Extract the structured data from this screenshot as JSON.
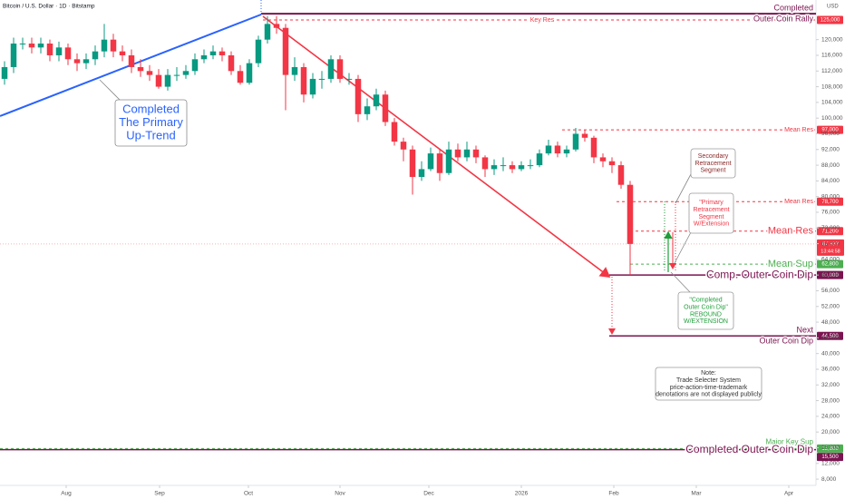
{
  "chart_data": {
    "type": "candlestick",
    "title": "Bitcoin / U.S. Dollar · 1D · Bitstamp",
    "currency": "USD",
    "categories": [
      null,
      null,
      null,
      null,
      null,
      null,
      null,
      null,
      null,
      null,
      null,
      null,
      null,
      null,
      null,
      null,
      null,
      null,
      null,
      null,
      null,
      null,
      null,
      null,
      null,
      null,
      null,
      null,
      null,
      null,
      null,
      null,
      null,
      null,
      null,
      null,
      null,
      null,
      null,
      null,
      null,
      null,
      null,
      null,
      null,
      null,
      null,
      null,
      null,
      null,
      null,
      null,
      null,
      null,
      null,
      null,
      null,
      null,
      null,
      null,
      null,
      null,
      null,
      null,
      null,
      null,
      null,
      null,
      null,
      null
    ],
    "open": [
      110000,
      113000,
      119000,
      119000,
      118000,
      119000,
      116000,
      118000,
      115000,
      114000,
      115000,
      117000,
      120000,
      117000,
      116000,
      113000,
      112000,
      111000,
      108000,
      111000,
      111000,
      112000,
      115000,
      116000,
      117000,
      116000,
      112000,
      109000,
      114000,
      120000,
      124000,
      123000,
      111000,
      113000,
      106000,
      110000,
      110000,
      115000,
      110000,
      110000,
      101000,
      103000,
      106000,
      99000,
      94000,
      92000,
      85000,
      87000,
      91000,
      86000,
      92000,
      90000,
      92000,
      90000,
      87000,
      88000,
      88000,
      87000,
      88000,
      88000,
      91000,
      93000,
      91000,
      92000,
      96000,
      95000,
      90000,
      89000,
      88000,
      83000
    ],
    "high": [
      114500,
      120500,
      120500,
      120500,
      120500,
      120000,
      119500,
      119000,
      116500,
      116500,
      118500,
      124000,
      121500,
      118500,
      117500,
      115000,
      113500,
      112500,
      112500,
      113000,
      113500,
      116500,
      117500,
      118500,
      118000,
      117000,
      113500,
      115000,
      121000,
      126000,
      126000,
      124000,
      115500,
      114000,
      111500,
      112000,
      116000,
      116000,
      111500,
      111000,
      105000,
      107500,
      107000,
      100000,
      95000,
      93000,
      89000,
      92500,
      92000,
      94000,
      93500,
      94000,
      93000,
      90500,
      89500,
      90000,
      89000,
      89000,
      89500,
      92000,
      94500,
      94000,
      93000,
      97500,
      97000,
      95500,
      91000,
      90000,
      89000,
      84000
    ],
    "low": [
      108500,
      111500,
      117500,
      116500,
      116500,
      114500,
      114500,
      113500,
      112000,
      112500,
      113500,
      115500,
      115500,
      114500,
      111500,
      110500,
      109500,
      107500,
      107000,
      109500,
      110000,
      111000,
      114000,
      115000,
      114500,
      111000,
      108500,
      108500,
      113000,
      119000,
      121500,
      102000,
      109500,
      104000,
      105000,
      107500,
      109000,
      109000,
      108500,
      99000,
      99500,
      102000,
      98000,
      93000,
      89000,
      80500,
      84000,
      86500,
      84000,
      85500,
      89000,
      89000,
      88500,
      85000,
      85500,
      86500,
      86000,
      86500,
      87000,
      87500,
      90500,
      90000,
      90000,
      91500,
      94000,
      88500,
      87500,
      86000,
      82000,
      60000
    ],
    "close": [
      113000,
      119000,
      119000,
      118000,
      119000,
      116000,
      118000,
      115000,
      114000,
      115000,
      117000,
      120000,
      117000,
      116000,
      113000,
      112000,
      111000,
      108000,
      111000,
      111000,
      112000,
      115000,
      116000,
      117000,
      116000,
      112000,
      109000,
      114000,
      120000,
      124000,
      123000,
      111000,
      113000,
      106000,
      110000,
      110000,
      115000,
      110000,
      110000,
      101000,
      103000,
      106000,
      99000,
      94000,
      92000,
      85000,
      87000,
      91000,
      86000,
      92000,
      90000,
      92000,
      90000,
      87000,
      88000,
      88000,
      87000,
      88000,
      88000,
      91000,
      93000,
      91000,
      92000,
      96000,
      95000,
      90000,
      89000,
      88000,
      83000,
      67937
    ],
    "up_color": "#089981",
    "down_color": "#f23645",
    "xlim": [
      -0.5,
      89.5
    ],
    "xticks": [
      {
        "value": 6.8,
        "label": "Aug"
      },
      {
        "value": 17.1,
        "label": "Sep"
      },
      {
        "value": 26.9,
        "label": "Oct"
      },
      {
        "value": 37.0,
        "label": "Nov"
      },
      {
        "value": 46.8,
        "label": "Dec"
      },
      {
        "value": 57.0,
        "label": "2026"
      },
      {
        "value": 67.2,
        "label": "Feb"
      },
      {
        "value": 76.3,
        "label": "Mar"
      },
      {
        "value": 86.5,
        "label": "Apr"
      }
    ],
    "ylim": [
      6400,
      130100
    ],
    "yticks": [
      {
        "value": 8000,
        "label": "8,000"
      },
      {
        "value": 12000,
        "label": "12,000"
      },
      {
        "value": 16000,
        "label": "16,000"
      },
      {
        "value": 20000,
        "label": "20,000"
      },
      {
        "value": 24000,
        "label": "24,000"
      },
      {
        "value": 28000,
        "label": "28,000"
      },
      {
        "value": 32000,
        "label": "32,000"
      },
      {
        "value": 36000,
        "label": "36,000"
      },
      {
        "value": 40000,
        "label": "40,000"
      },
      {
        "value": 44000,
        "label": "44,000"
      },
      {
        "value": 48000,
        "label": "48,000"
      },
      {
        "value": 52000,
        "label": "52,000"
      },
      {
        "value": 56000,
        "label": "56,000"
      },
      {
        "value": 60000,
        "label": "60,000"
      },
      {
        "value": 64000,
        "label": "64,000"
      },
      {
        "value": 68000,
        "label": "68,000"
      },
      {
        "value": 72000,
        "label": "72,000"
      },
      {
        "value": 76000,
        "label": "76,000"
      },
      {
        "value": 80000,
        "label": "80,000"
      },
      {
        "value": 84000,
        "label": "84,000"
      },
      {
        "value": 88000,
        "label": "88,000"
      },
      {
        "value": 92000,
        "label": "92,000"
      },
      {
        "value": 96000,
        "label": "96,000"
      },
      {
        "value": 100000,
        "label": "100,000"
      },
      {
        "value": 104000,
        "label": "104,000"
      },
      {
        "value": 108000,
        "label": "108,000"
      },
      {
        "value": 112000,
        "label": "112,000"
      },
      {
        "value": 116000,
        "label": "116,000"
      },
      {
        "value": 120000,
        "label": "120,000"
      }
    ],
    "last_price": {
      "value": 67937,
      "label": "67,937"
    },
    "countdown": "13:44:58",
    "levels": [
      {
        "label": [
          "Completed",
          "Outer Coin Rally"
        ],
        "value": 126600,
        "color": "#7b1450",
        "style": "solid"
      },
      {
        "label": [
          "Key Res"
        ],
        "value": 125000,
        "value_label": "125,000",
        "color": "#f23645",
        "style": "dashed"
      },
      {
        "label": [
          "Mean Res"
        ],
        "value": 97000,
        "value_label": "97,000",
        "color": "#f23645",
        "style": "dashed"
      },
      {
        "label": [
          "Mean Res"
        ],
        "value": 78700,
        "value_label": "78,700",
        "color": "#f23645",
        "style": "dashed"
      },
      {
        "label": [
          "Mean Res"
        ],
        "value": 71200,
        "value_label": "71,200",
        "color": "#f23645",
        "style": "dashed"
      },
      {
        "label": [
          "Mean Sup"
        ],
        "value": 62800,
        "value_label": "62,800",
        "color": "#4caf50",
        "style": "dashed"
      },
      {
        "label": [
          "Comp. Outer Coin Dip"
        ],
        "value": 60000,
        "value_label": "60,000",
        "color": "#7b1450",
        "style": "solid"
      },
      {
        "label": [
          "Next",
          "Outer Coin Dip"
        ],
        "value": 44500,
        "value_label": "44,500",
        "color": "#7b1450",
        "style": "solid"
      },
      {
        "label": [
          "Major Key Sup"
        ],
        "value": 15800,
        "value_label": "15,800",
        "color": "#4caf50",
        "style": "dashed"
      },
      {
        "label": [
          "Completed Outer Coin Dip"
        ],
        "value": 15500,
        "value_label": "15,500",
        "color": "#7b1450",
        "style": "solid"
      }
    ],
    "annotations": [
      {
        "lines": [
          "Completed",
          "The Primary",
          "Up-Trend"
        ],
        "color": "#2962ff"
      },
      {
        "lines": [
          "Secondary",
          "Retracement",
          "Segment"
        ],
        "color": "#8b2a2a"
      },
      {
        "lines": [
          "\"Primary",
          "Retracement",
          "Segment",
          "W/Extension"
        ],
        "color": "#f23645"
      },
      {
        "lines": [
          "\"Completed",
          "Outer Coin Dip\"",
          "REBOUND",
          "W/EXTENSION"
        ],
        "color": "#1e9e3a"
      },
      {
        "lines": [
          "Note:",
          "Trade Selecter System",
          "price-action-time-trademark",
          "denotations are not displayed publicly"
        ],
        "color": "#333333"
      }
    ]
  }
}
